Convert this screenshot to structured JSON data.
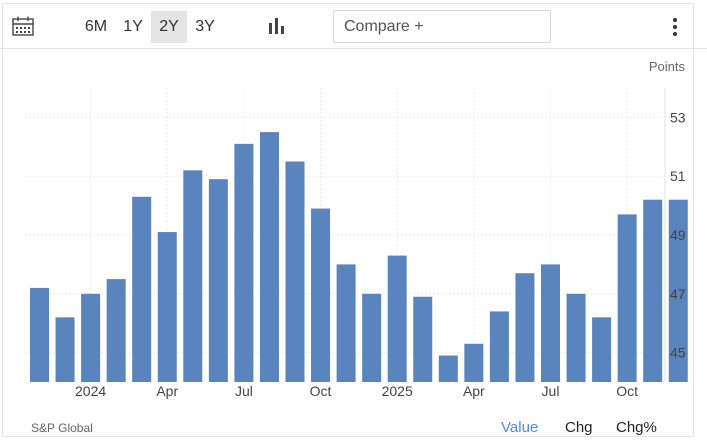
{
  "toolbar": {
    "ranges": [
      "6M",
      "1Y",
      "2Y",
      "3Y"
    ],
    "active_range": "2Y",
    "compare_placeholder": "Compare +",
    "icons": {
      "calendar": "calendar-icon",
      "chart_type": "bar-chart-icon",
      "menu": "kebab-menu-icon"
    }
  },
  "footer": {
    "source": "S&P Global",
    "modes": [
      "Value",
      "Chg",
      "Chg%"
    ],
    "active_mode": "Value"
  },
  "colors": {
    "bar": "#5a84bd",
    "accent": "#4a90d9",
    "active_range_bg": "#e4e4e4"
  },
  "chart_data": {
    "type": "bar",
    "ylabel": "Points",
    "ylim": [
      44,
      54
    ],
    "yticks": [
      45,
      47,
      49,
      51,
      53
    ],
    "grid": true,
    "categories": [
      "2023-11",
      "2023-12",
      "2024-01",
      "2024-02",
      "2024-03",
      "2024-04",
      "2024-05",
      "2024-06",
      "2024-07",
      "2024-08",
      "2024-09",
      "2024-10",
      "2024-11",
      "2024-12",
      "2025-01",
      "2025-02",
      "2025-03",
      "2025-04",
      "2025-05",
      "2025-06",
      "2025-07",
      "2025-08",
      "2025-09",
      "2025-10",
      "2025-11",
      "2025-12"
    ],
    "values": [
      47.2,
      46.2,
      47.0,
      47.5,
      50.3,
      49.1,
      51.2,
      50.9,
      52.1,
      52.5,
      51.5,
      49.9,
      48.0,
      47.0,
      48.3,
      46.9,
      44.9,
      45.3,
      46.4,
      47.7,
      48.0,
      47.0,
      46.2,
      49.7,
      50.2,
      50.2
    ],
    "x_tick_labels": [
      {
        "index": 2,
        "label": "2024"
      },
      {
        "index": 5,
        "label": "Apr"
      },
      {
        "index": 8,
        "label": "Jul"
      },
      {
        "index": 11,
        "label": "Oct"
      },
      {
        "index": 14,
        "label": "2025"
      },
      {
        "index": 17,
        "label": "Apr"
      },
      {
        "index": 20,
        "label": "Jul"
      },
      {
        "index": 23,
        "label": "Oct"
      }
    ]
  }
}
